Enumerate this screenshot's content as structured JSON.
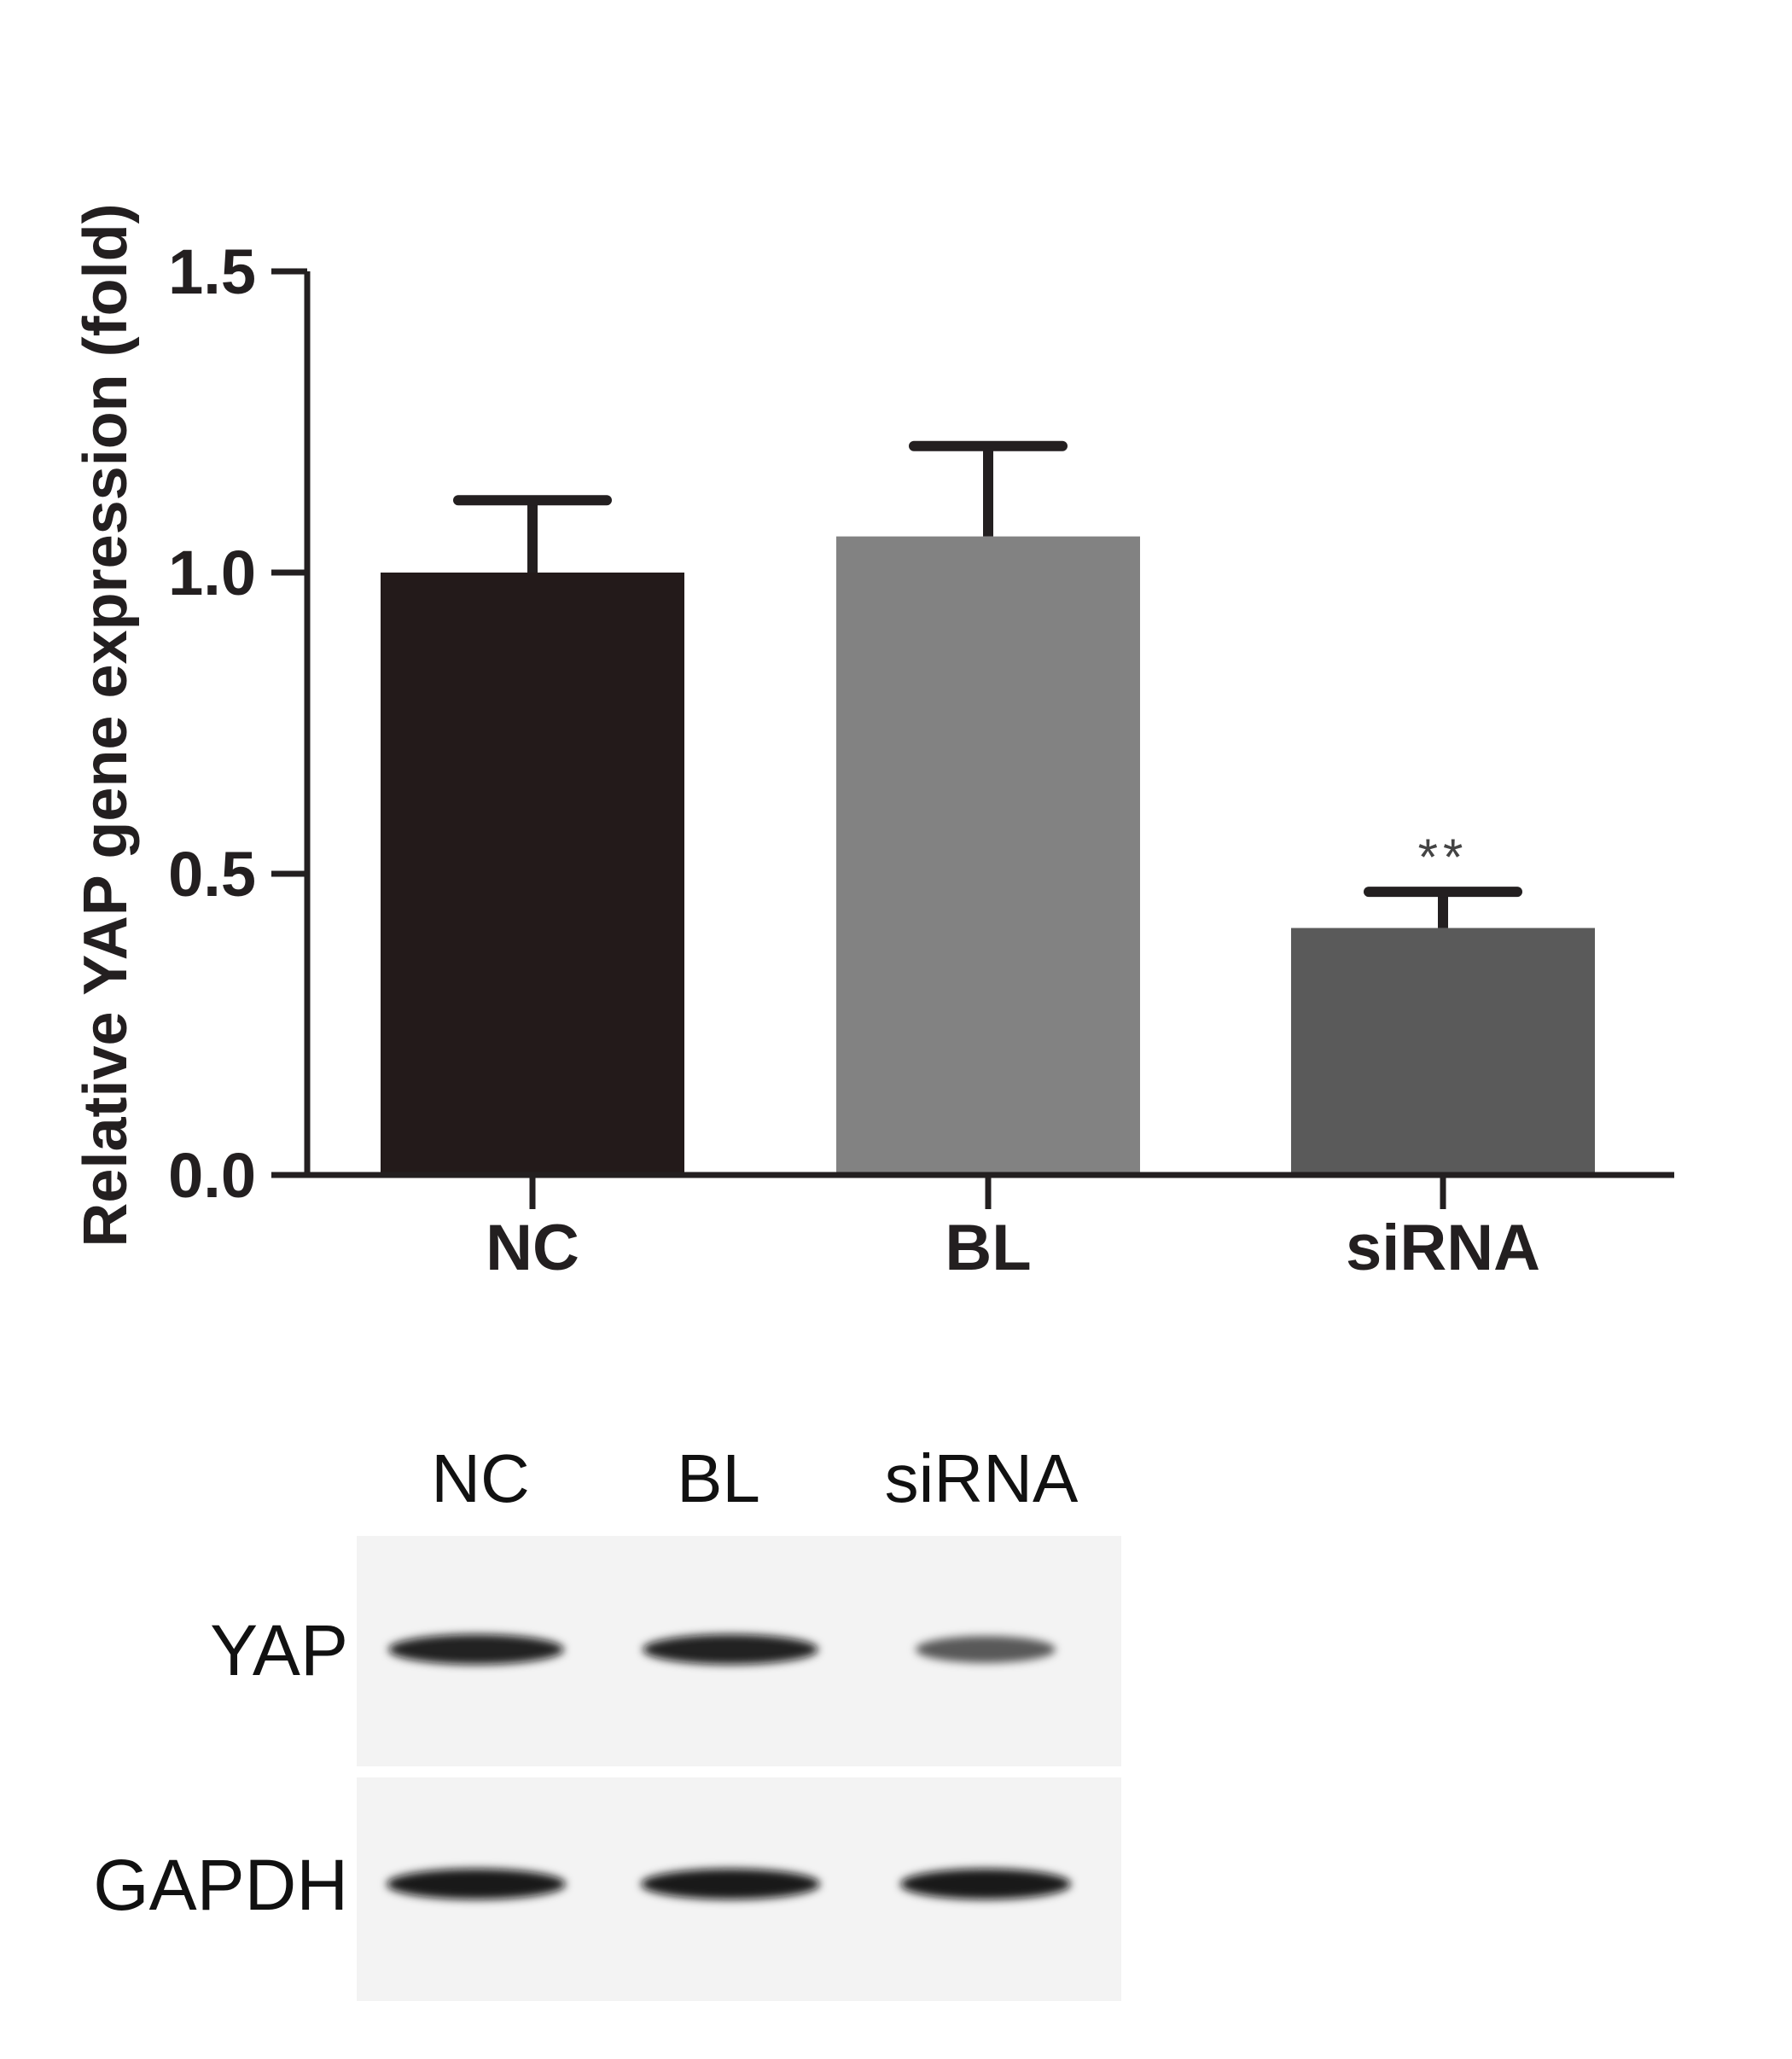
{
  "chart_data": {
    "type": "bar",
    "title": "",
    "xlabel": "",
    "ylabel": "Relative YAP gene expression (fold)",
    "ylim": [
      0,
      1.5
    ],
    "yticks": [
      "0.0",
      "0.5",
      "1.0",
      "1.5"
    ],
    "categories": [
      "NC",
      "BL",
      "siRNA"
    ],
    "values": [
      1.0,
      1.06,
      0.41
    ],
    "errors": [
      0.12,
      0.15,
      0.06
    ],
    "bar_colors": [
      "#231a1a",
      "#828282",
      "#5a5a5a"
    ],
    "annotations": [
      "",
      "",
      "**"
    ],
    "grid": false,
    "legend": "none"
  },
  "blot": {
    "lane_labels": [
      "NC",
      "BL",
      "siRNA"
    ],
    "rows": [
      {
        "label": "YAP",
        "band_intensity": [
          0.95,
          0.95,
          0.55
        ]
      },
      {
        "label": "GAPDH",
        "band_intensity": [
          1.0,
          1.0,
          1.0
        ]
      }
    ]
  }
}
